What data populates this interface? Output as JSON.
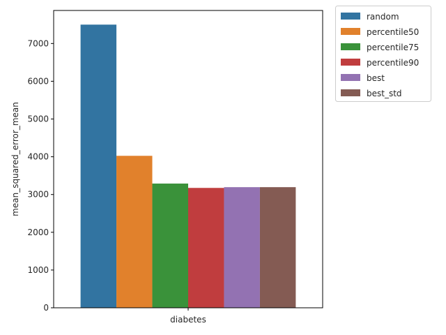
{
  "chart_data": {
    "type": "bar",
    "categories": [
      "diabetes"
    ],
    "series": [
      {
        "name": "random",
        "values": [
          7500
        ],
        "color": "#3274a1"
      },
      {
        "name": "percentile50",
        "values": [
          4025
        ],
        "color": "#e1812c"
      },
      {
        "name": "percentile75",
        "values": [
          3290
        ],
        "color": "#3a923a"
      },
      {
        "name": "percentile90",
        "values": [
          3175
        ],
        "color": "#c03d3e"
      },
      {
        "name": "best",
        "values": [
          3195
        ],
        "color": "#9372b2"
      },
      {
        "name": "best_std",
        "values": [
          3195
        ],
        "color": "#845b53"
      }
    ],
    "xlabel": "",
    "ylabel": "mean_squared_error_mean",
    "ylim": [
      0,
      7875
    ],
    "yticks": [
      0,
      1000,
      2000,
      3000,
      4000,
      5000,
      6000,
      7000
    ],
    "ytick_labels": [
      "0",
      "1000",
      "2000",
      "3000",
      "4000",
      "5000",
      "6000",
      "7000"
    ],
    "grid": false,
    "legend_position": "outside top-right"
  }
}
